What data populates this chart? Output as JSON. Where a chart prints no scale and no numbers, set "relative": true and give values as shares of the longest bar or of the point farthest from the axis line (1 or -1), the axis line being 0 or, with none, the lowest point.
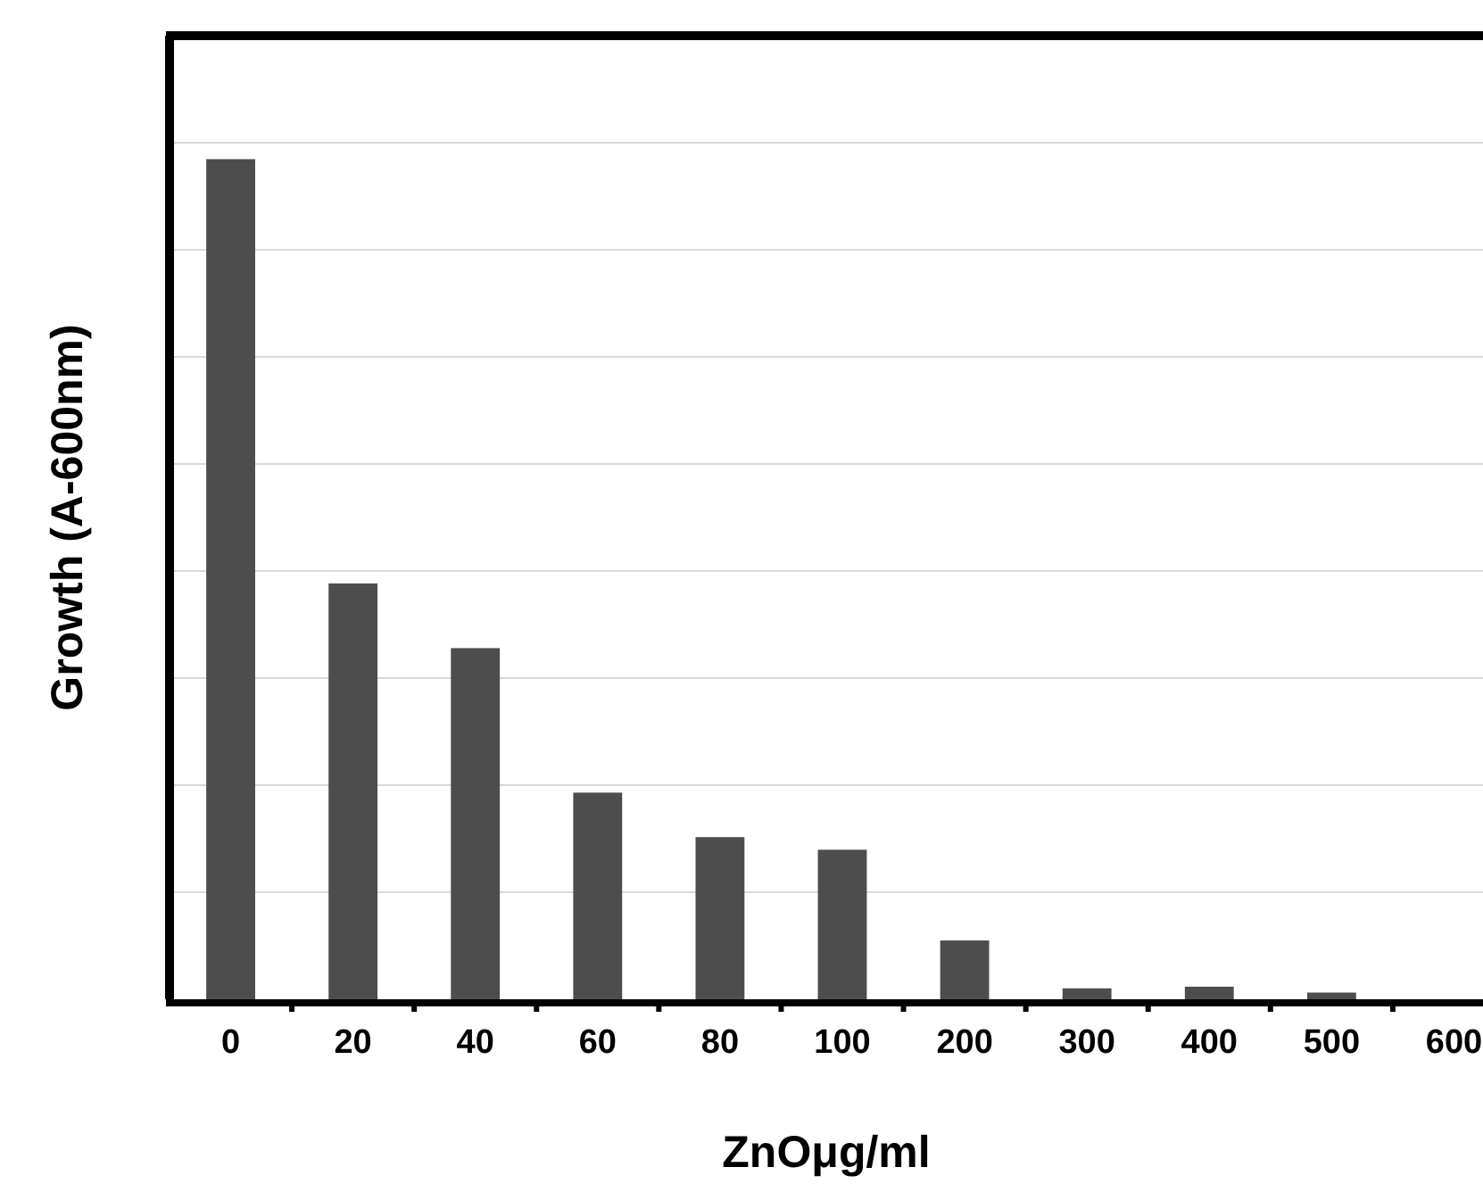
{
  "chart_data": {
    "type": "bar",
    "xlabel": "ZnOμg/ml",
    "ylabel": "Growth (A-600nm)",
    "relative": true,
    "grid": "y",
    "color": "#4d4d4d",
    "categories": [
      "0",
      "20",
      "40",
      "60",
      "80",
      "100",
      "200",
      "300",
      "400",
      "500",
      "600"
    ],
    "values": [
      1,
      0.495,
      0.418,
      0.246,
      0.193,
      0.178,
      0.07,
      0.013,
      0.015,
      0.008,
      0
    ]
  }
}
